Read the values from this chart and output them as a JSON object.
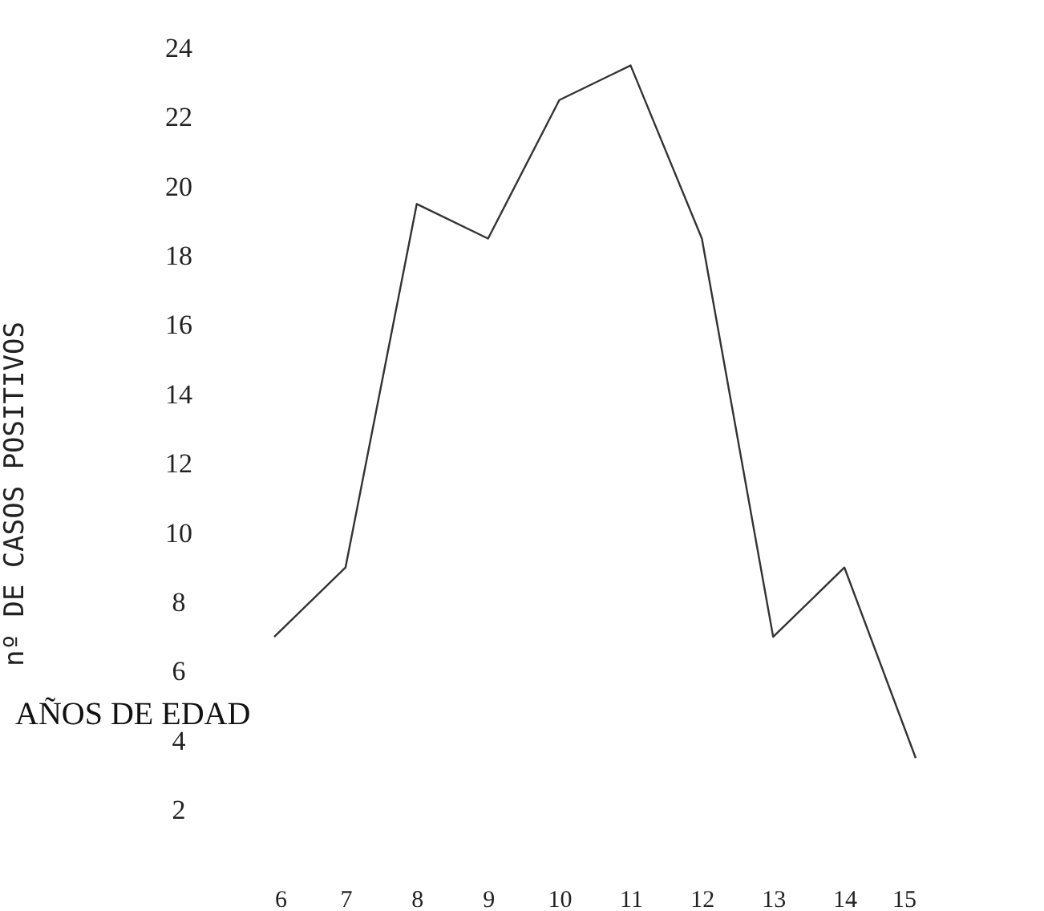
{
  "chart_data": {
    "type": "line",
    "xlabel": "AÑOS DE EDAD",
    "ylabel": "nº DE CASOS POSITIVOS",
    "x": [
      6,
      7,
      8,
      9,
      10,
      11,
      12,
      13,
      14,
      15
    ],
    "series": [
      {
        "color": "#333333",
        "values": [
          7,
          9,
          19.5,
          18.5,
          22.5,
          23.5,
          18.5,
          7,
          9,
          3.5
        ]
      }
    ],
    "xlim": [
      6,
      15
    ],
    "xticks": [
      6,
      7,
      8,
      9,
      10,
      11,
      12,
      13,
      14,
      15
    ],
    "ylim": [
      2,
      24
    ],
    "yticks": [
      2,
      4,
      6,
      8,
      10,
      12,
      14,
      16,
      18,
      20,
      22,
      24
    ],
    "grid": false,
    "legend": false,
    "marker": "none",
    "line_style": "solid"
  }
}
